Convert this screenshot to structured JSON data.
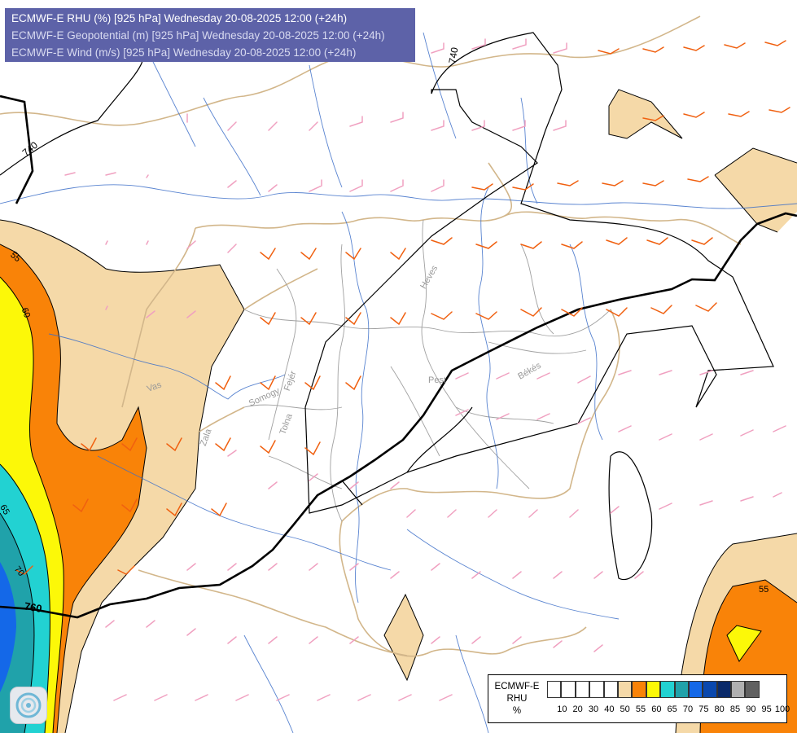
{
  "header": {
    "line1": "ECMWF-E RHU (%) [925 hPa] Wednesday 20-08-2025 12:00 (+24h)",
    "line2": "ECMWF-E Geopotential (m) [925 hPa] Wednesday 20-08-2025 12:00 (+24h)",
    "line3": "ECMWF-E Wind (m/s) [925 hPa] Wednesday 20-08-2025 12:00 (+24h)"
  },
  "contour_labels": {
    "geo_740_top": "740",
    "geo_740_left": "740",
    "geo_760": "760",
    "rh_55_left": "55",
    "rh_60_left": "60",
    "rh_65_left": "65",
    "rh_70_left": "70",
    "rh_55_right": "55"
  },
  "place_labels": {
    "vas": "Vas",
    "zala": "Zala",
    "somogy": "Somogy",
    "fejer": "Fejér",
    "tolna": "Tolna",
    "heves": "Heves",
    "pest": "Pest",
    "bekes": "Békés"
  },
  "legend": {
    "title_line1": "ECMWF-E",
    "title_line2": "RHU",
    "title_line3": "%",
    "ticks": [
      "10",
      "20",
      "30",
      "40",
      "50",
      "55",
      "60",
      "65",
      "70",
      "75",
      "80",
      "85",
      "90",
      "95",
      "100"
    ],
    "colors": [
      "#ffffff",
      "#ffffff",
      "#ffffff",
      "#ffffff",
      "#ffffff",
      "#f5d9a8",
      "#f98308",
      "#fcf808",
      "#22d2d2",
      "#20a2aa",
      "#1468e8",
      "#0a48ae",
      "#0a2a6a",
      "#b0b0b0",
      "#606060"
    ]
  },
  "colors": {
    "rh_55": "#f5d9a8",
    "rh_60": "#f98308",
    "rh_65": "#fcf808",
    "rh_70": "#22d2d2",
    "rh_75": "#20a2aa",
    "rh_80": "#1468e8",
    "wind_weak": "#f0a0c0",
    "wind_strong": "#f06010",
    "rivers": "#3c6ec8",
    "borders": "#d2b68a",
    "title_bg": "#5d62a8"
  },
  "logo_icon": "organization-logo"
}
